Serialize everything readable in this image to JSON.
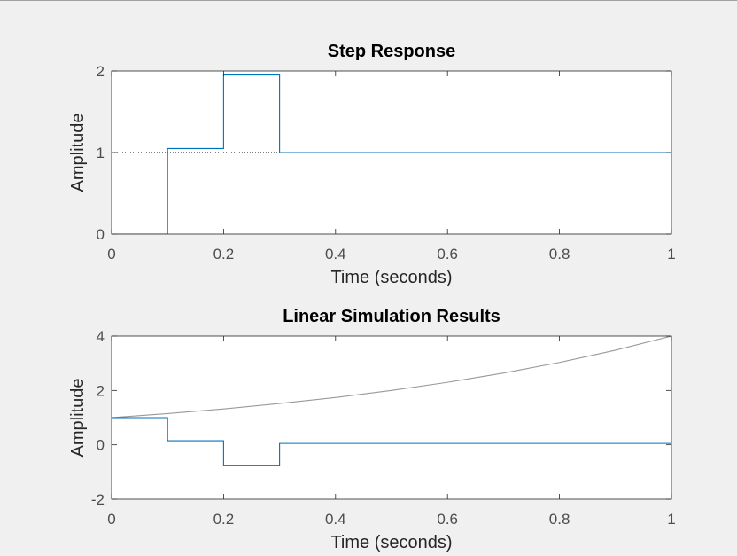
{
  "chart_data": [
    {
      "type": "line",
      "title": "Step Response",
      "xlabel": "Time (seconds)",
      "ylabel": "Amplitude",
      "xlim": [
        0,
        1
      ],
      "ylim": [
        0,
        2
      ],
      "xticks": [
        "0",
        "0.2",
        "0.4",
        "0.6",
        "0.8",
        "1"
      ],
      "yticks": [
        "0",
        "1",
        "2"
      ],
      "grid": false,
      "reference_line": {
        "y": 1,
        "style": "dotted",
        "x_range": [
          0,
          0.3
        ]
      },
      "series": [
        {
          "style": "step",
          "color": "#0072bd",
          "x": [
            0,
            0.1,
            0.2,
            0.3,
            1.0
          ],
          "y": [
            0,
            1.05,
            1.95,
            1.0,
            1.0
          ]
        }
      ]
    },
    {
      "type": "line",
      "title": "Linear Simulation Results",
      "xlabel": "Time (seconds)",
      "ylabel": "Amplitude",
      "xlim": [
        0,
        1
      ],
      "ylim": [
        -2,
        4
      ],
      "xticks": [
        "0",
        "0.2",
        "0.4",
        "0.6",
        "0.8",
        "1"
      ],
      "yticks": [
        "-2",
        "0",
        "2",
        "4"
      ],
      "grid": false,
      "series": [
        {
          "style": "line",
          "color": "#999999",
          "x": [
            0,
            0.1,
            0.2,
            0.3,
            0.4,
            0.5,
            0.6,
            0.7,
            0.8,
            0.9,
            1.0
          ],
          "y": [
            1.0,
            1.15,
            1.32,
            1.52,
            1.74,
            2.0,
            2.3,
            2.64,
            3.03,
            3.48,
            4.0
          ]
        },
        {
          "style": "step",
          "color": "#0072bd",
          "x": [
            0,
            0.1,
            0.2,
            0.3,
            1.0
          ],
          "y": [
            1.0,
            0.15,
            -0.75,
            0.05,
            0.05
          ]
        }
      ]
    }
  ]
}
